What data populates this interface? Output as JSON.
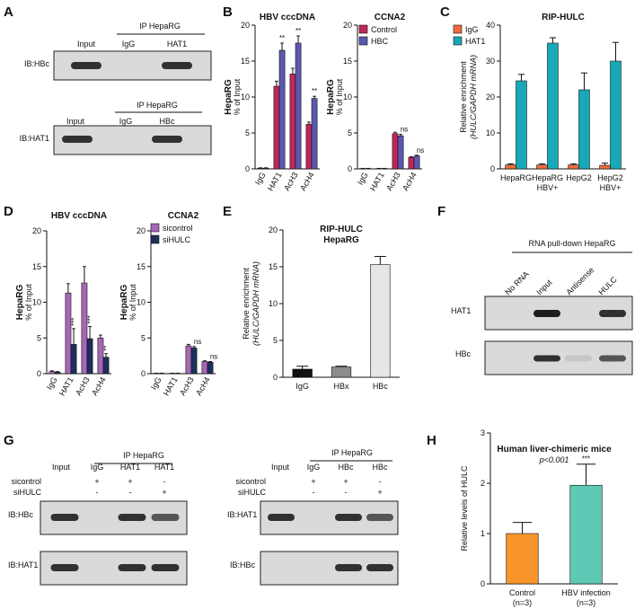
{
  "panels": {
    "A": {
      "label": "A",
      "blot1": {
        "ip": "IP HepaRG",
        "lanes": [
          "Input",
          "IgG",
          "HAT1"
        ],
        "row": "IB:HBc",
        "bands": [
          0.9,
          0.0,
          0.9
        ]
      },
      "blot2": {
        "ip": "IP HepaRG",
        "lanes": [
          "Input",
          "IgG",
          "HBc"
        ],
        "row": "IB:HAT1",
        "bands": [
          0.9,
          0.0,
          0.9
        ]
      }
    },
    "B": {
      "label": "B"
    },
    "C": {
      "label": "C"
    },
    "D": {
      "label": "D"
    },
    "E": {
      "label": "E"
    },
    "F": {
      "label": "F",
      "title": "RNA pull-down HepaRG",
      "lanes": [
        "No RNA",
        "Input",
        "Antisense",
        "HULC"
      ],
      "rows": [
        {
          "name": "HAT1",
          "bands": [
            0.0,
            1.0,
            0.0,
            0.9
          ]
        },
        {
          "name": "HBc",
          "bands": [
            0.0,
            0.9,
            0.1,
            0.7
          ]
        }
      ]
    },
    "G": {
      "label": "G",
      "left": {
        "ip": "IP HepaRG",
        "lanes": [
          "Input",
          "IgG",
          "HAT1",
          "HAT1"
        ],
        "cond_labels": [
          "sicontrol",
          "siHULC"
        ],
        "cond_marks": [
          [
            "",
            "+",
            "+",
            "-"
          ],
          [
            "",
            "-",
            "-",
            "+"
          ]
        ],
        "rows": [
          {
            "name": "IB:HBc",
            "bands": [
              0.9,
              0.0,
              0.9,
              0.7
            ]
          },
          {
            "name": "IB:HAT1",
            "bands": [
              0.9,
              0.0,
              0.9,
              0.9
            ]
          }
        ]
      },
      "right": {
        "ip": "IP HepaRG",
        "lanes": [
          "Input",
          "IgG",
          "HBc",
          "HBc"
        ],
        "cond_labels": [
          "sicontrol",
          "siHULC"
        ],
        "cond_marks": [
          [
            "",
            "+",
            "+",
            "-"
          ],
          [
            "",
            "-",
            "-",
            "+"
          ]
        ],
        "rows": [
          {
            "name": "IB:HAT1",
            "bands": [
              0.9,
              0.0,
              0.9,
              0.7
            ]
          },
          {
            "name": "IB:HBc",
            "bands": [
              0.0,
              0.0,
              0.9,
              0.9
            ]
          }
        ]
      }
    },
    "H": {
      "label": "H"
    }
  },
  "chart_data": [
    {
      "id": "B1",
      "type": "bar",
      "title": "HBV cccDNA",
      "ylabel_bold": "HepaRG",
      "ylabel": "% of Input",
      "ylim": [
        0,
        20
      ],
      "yticks": [
        0,
        5,
        10,
        15,
        20
      ],
      "categories": [
        "IgG",
        "HAT1",
        "AcH3",
        "AcH4"
      ],
      "series": [
        {
          "name": "Control",
          "color": "#c0255b",
          "values": [
            0.1,
            11.5,
            13.2,
            6.2
          ],
          "errors": [
            0.05,
            0.7,
            0.8,
            0.3
          ]
        },
        {
          "name": "HBC",
          "color": "#5b58b2",
          "values": [
            0.1,
            16.5,
            17.5,
            9.8
          ],
          "errors": [
            0.05,
            1.0,
            1.0,
            0.3
          ]
        }
      ],
      "annotations": [
        {
          "category": 1,
          "series": 1,
          "text": "**"
        },
        {
          "category": 2,
          "series": 1,
          "text": "**"
        },
        {
          "category": 3,
          "series": 1,
          "text": "**"
        }
      ]
    },
    {
      "id": "B2",
      "type": "bar",
      "title": "CCNA2",
      "ylabel_bold": "HepaRG",
      "ylabel": "% of Input",
      "ylim": [
        0,
        20
      ],
      "yticks": [
        0,
        5,
        10,
        15,
        20
      ],
      "categories": [
        "IgG",
        "HAT1",
        "AcH3",
        "AcH4"
      ],
      "legend": "top-right",
      "series": [
        {
          "name": "Control",
          "color": "#c0255b",
          "values": [
            0.05,
            0.05,
            4.9,
            1.6
          ],
          "errors": [
            0.02,
            0.02,
            0.2,
            0.1
          ]
        },
        {
          "name": "HBC",
          "color": "#5b58b2",
          "values": [
            0.05,
            0.05,
            4.6,
            1.8
          ],
          "errors": [
            0.02,
            0.02,
            0.2,
            0.1
          ]
        }
      ],
      "annotations": [
        {
          "category": 2,
          "series": 1,
          "text": "ns"
        },
        {
          "category": 3,
          "series": 1,
          "text": "ns"
        }
      ]
    },
    {
      "id": "C",
      "type": "bar",
      "title": "RIP-HULC",
      "ylabel": "Relative enrichment",
      "ylabel2": "(HULC/GAPDH mRNA)",
      "ylim": [
        0,
        40
      ],
      "yticks": [
        0,
        10,
        20,
        30,
        40
      ],
      "categories": [
        "HepaRG",
        "HepaRG\nHBV+",
        "HepG2",
        "HepG2\nHBV+"
      ],
      "legend": "top-left",
      "series": [
        {
          "name": "IgG",
          "color": "#f06a3a",
          "values": [
            1.1,
            1.1,
            1.1,
            1.0
          ],
          "errors": [
            0.3,
            0.3,
            0.3,
            0.6
          ]
        },
        {
          "name": "HAT1",
          "color": "#17a9b8",
          "values": [
            24.5,
            35.0,
            22.0,
            30.0
          ],
          "errors": [
            1.8,
            1.5,
            4.7,
            5.2
          ]
        }
      ]
    },
    {
      "id": "D1",
      "type": "bar",
      "title": "HBV cccDNA",
      "ylabel_bold": "HepaRG",
      "ylabel": "% of Input",
      "ylim": [
        0,
        20
      ],
      "yticks": [
        0,
        5,
        10,
        15,
        20
      ],
      "categories": [
        "IgG",
        "HAT1",
        "AcH3",
        "AcH4"
      ],
      "series": [
        {
          "name": "sicontrol",
          "color": "#a866b8",
          "values": [
            0.3,
            11.3,
            12.7,
            5.0
          ],
          "errors": [
            0.1,
            1.3,
            2.3,
            0.4
          ]
        },
        {
          "name": "siHULC",
          "color": "#1f2f5c",
          "values": [
            0.2,
            4.1,
            4.9,
            2.3
          ],
          "errors": [
            0.1,
            2.2,
            1.7,
            0.5
          ]
        }
      ],
      "annotations": [
        {
          "category": 1,
          "series": 1,
          "text": "***"
        },
        {
          "category": 2,
          "series": 1,
          "text": "***"
        },
        {
          "category": 3,
          "series": 1,
          "text": "**"
        }
      ]
    },
    {
      "id": "D2",
      "type": "bar",
      "title": "CCNA2",
      "ylabel_bold": "HepaRG",
      "ylabel": "% of Input",
      "ylim": [
        0,
        20
      ],
      "yticks": [
        0,
        5,
        10,
        15,
        20
      ],
      "categories": [
        "IgG",
        "HAT1",
        "AcH3",
        "AcH4"
      ],
      "legend": "top-right",
      "series": [
        {
          "name": "sicontrol",
          "color": "#a866b8",
          "values": [
            0.05,
            0.05,
            3.9,
            1.7
          ],
          "errors": [
            0.02,
            0.02,
            0.2,
            0.1
          ]
        },
        {
          "name": "siHULC",
          "color": "#1f2f5c",
          "values": [
            0.05,
            0.05,
            3.6,
            1.6
          ],
          "errors": [
            0.02,
            0.02,
            0.2,
            0.1
          ]
        }
      ],
      "annotations": [
        {
          "category": 2,
          "series": 1,
          "text": "ns"
        },
        {
          "category": 3,
          "series": 1,
          "text": "ns"
        }
      ]
    },
    {
      "id": "E",
      "type": "bar",
      "title": "RIP-HULC",
      "subtitle": "HepaRG",
      "ylabel": "Relative enrichment",
      "ylabel2": "(HULC/GAPDH mRNA)",
      "ylim": [
        0,
        20
      ],
      "yticks": [
        0,
        5,
        10,
        15,
        20
      ],
      "categories": [
        "IgG",
        "HBx",
        "HBc"
      ],
      "series": [
        {
          "name": "",
          "colors": [
            "#111111",
            "#8c8c8c",
            "#e6e6e6"
          ],
          "values": [
            1.1,
            1.4,
            15.3
          ],
          "errors": [
            0.4,
            0.1,
            1.1
          ]
        }
      ]
    },
    {
      "id": "H",
      "type": "bar",
      "title": "Human liver-chimeric mice",
      "subtitle": "p<0.001",
      "ylabel": "Relative levels of HULC",
      "ylim": [
        0,
        3
      ],
      "yticks": [
        0,
        1,
        2,
        3
      ],
      "categories": [
        "Control\n(n=3)",
        "HBV infection\n(n=3)"
      ],
      "series": [
        {
          "name": "",
          "colors": [
            "#f7942a",
            "#5ec9b5"
          ],
          "values": [
            1.0,
            1.96
          ],
          "errors": [
            0.22,
            0.42
          ]
        }
      ],
      "annotations": [
        {
          "category": 1,
          "series": 0,
          "text": "***"
        }
      ]
    }
  ]
}
